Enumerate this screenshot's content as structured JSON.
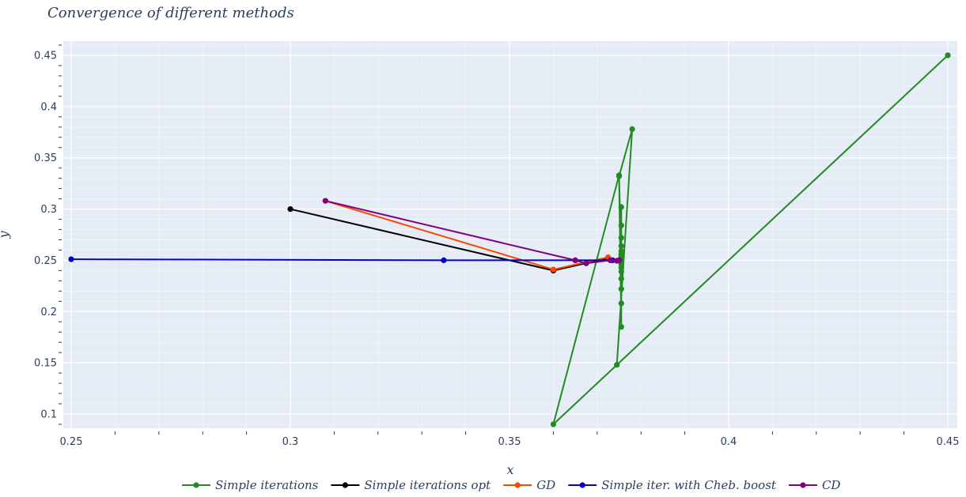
{
  "chart_data": {
    "type": "line",
    "title": "Convergence of different methods",
    "xlabel": "x",
    "ylabel": "y",
    "xlim": [
      0.25,
      0.452
    ],
    "ylim": [
      0.085,
      0.463
    ],
    "xticks": [
      0.25,
      0.3,
      0.35,
      0.4,
      0.45
    ],
    "xtick_labels": [
      "0.25",
      "0.3",
      "0.35",
      "0.4",
      "0.45"
    ],
    "yticks": [
      0.1,
      0.15,
      0.2,
      0.25,
      0.3,
      0.35,
      0.4,
      0.45
    ],
    "ytick_labels": [
      "0.1",
      "0.15",
      "0.2",
      "0.25",
      "0.3",
      "0.35",
      "0.4",
      "0.45"
    ],
    "grid": true,
    "legend_position": "bottom",
    "series": [
      {
        "name": "Simple iterations",
        "color": "#228b22",
        "x": [
          0.45,
          0.36,
          0.375,
          0.3755,
          0.3755,
          0.3755,
          0.3755,
          0.3755,
          0.3755,
          0.3755,
          0.3755,
          0.3755,
          0.3755,
          0.3755,
          0.3755,
          0.3755,
          0.3755,
          0.3755,
          0.3755,
          0.375,
          0.378,
          0.3745,
          0.45
        ],
        "y": [
          0.45,
          0.09,
          0.333,
          0.185,
          0.302,
          0.208,
          0.284,
          0.222,
          0.272,
          0.232,
          0.264,
          0.239,
          0.259,
          0.243,
          0.256,
          0.246,
          0.254,
          0.248,
          0.251,
          0.332,
          0.378,
          0.148,
          0.45
        ]
      },
      {
        "name": "Simple iterations opt",
        "color": "#000000",
        "x": [
          0.3,
          0.36,
          0.3725,
          0.375
        ],
        "y": [
          0.3,
          0.24,
          0.252,
          0.25
        ]
      },
      {
        "name": "GD",
        "color": "#ff4500",
        "x": [
          0.308,
          0.36,
          0.3725,
          0.375
        ],
        "y": [
          0.308,
          0.241,
          0.253,
          0.25
        ]
      },
      {
        "name": "Simple iter. with Cheb. boost",
        "color": "#0000cd",
        "x": [
          0.25,
          0.335,
          0.365,
          0.3735,
          0.375
        ],
        "y": [
          0.251,
          0.25,
          0.25,
          0.25,
          0.25
        ]
      },
      {
        "name": "CD",
        "color": "#800080",
        "x": [
          0.308,
          0.365,
          0.3675,
          0.373,
          0.3745,
          0.375
        ],
        "y": [
          0.308,
          0.25,
          0.247,
          0.25,
          0.2495,
          0.25
        ]
      }
    ]
  }
}
